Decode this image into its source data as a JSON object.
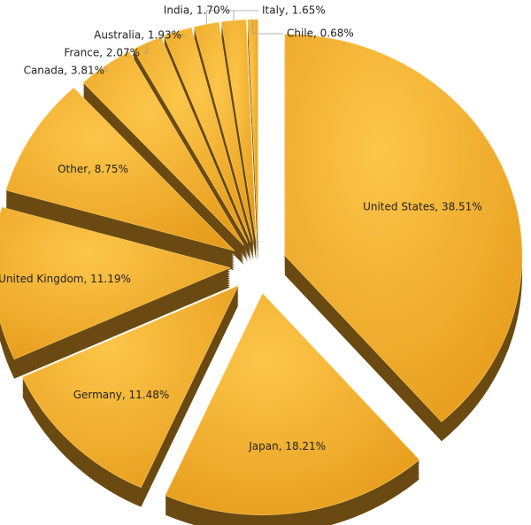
{
  "chart_data": {
    "type": "pie",
    "categories": [
      "United States, 38.51%",
      "Japan, 18.21%",
      "Germany, 11.48%",
      "United Kingdom, 11.19%",
      "Other, 8.75%",
      "Canada, 3.81%",
      "France, 2.07%",
      "Australia, 1.93%",
      "India, 1.70%",
      "Italy, 1.65%",
      "Chile, 0.68%"
    ],
    "values": [
      38.51,
      18.21,
      11.48,
      11.19,
      8.75,
      3.81,
      2.07,
      1.93,
      1.7,
      1.65,
      0.68
    ],
    "color": "#f6b73c",
    "side_color": "#6a4a12"
  }
}
